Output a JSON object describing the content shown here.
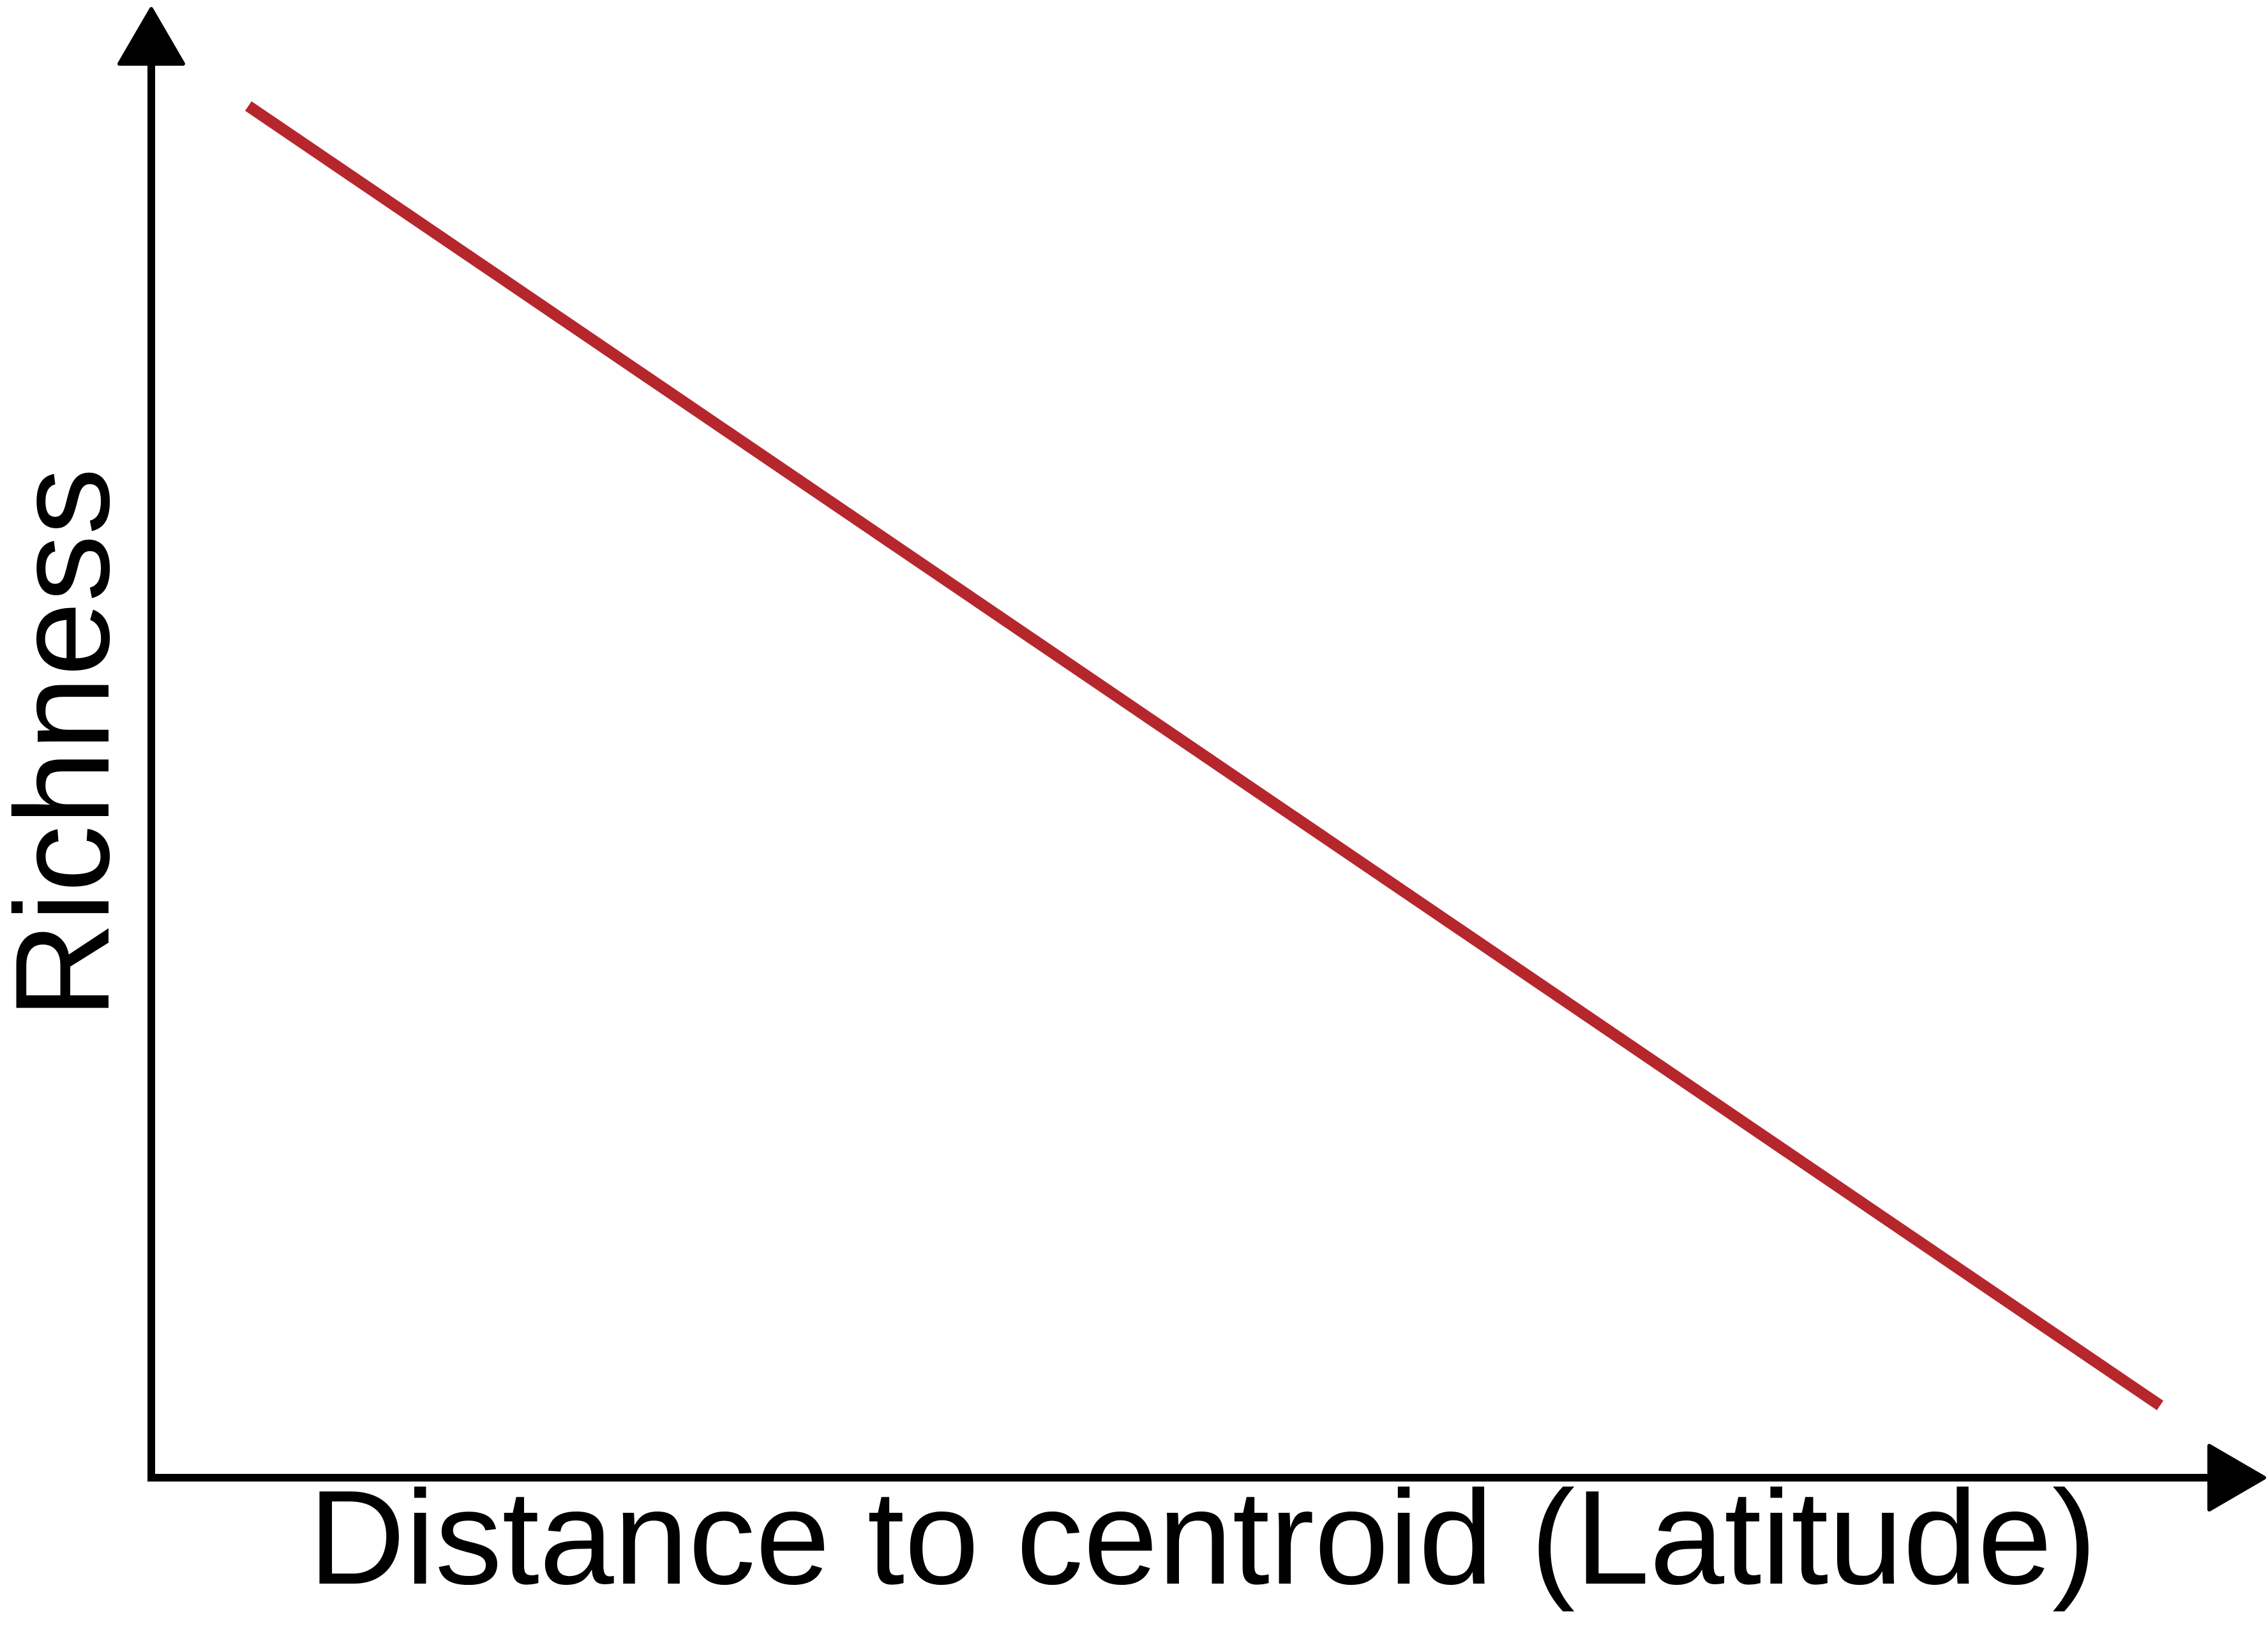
{
  "chart_data": {
    "type": "line",
    "title": "",
    "xlabel": "Distance to centroid (Latitude)",
    "ylabel": "Richness",
    "x": [
      0,
      1
    ],
    "series": [
      {
        "values": [
          0.95,
          0.05
        ],
        "color": "#b5272d"
      }
    ],
    "xlim": [
      0,
      1
    ],
    "ylim": [
      0,
      1
    ],
    "ticks_shown": false,
    "grid": false,
    "legend": "none",
    "axis_color": "#000000"
  }
}
